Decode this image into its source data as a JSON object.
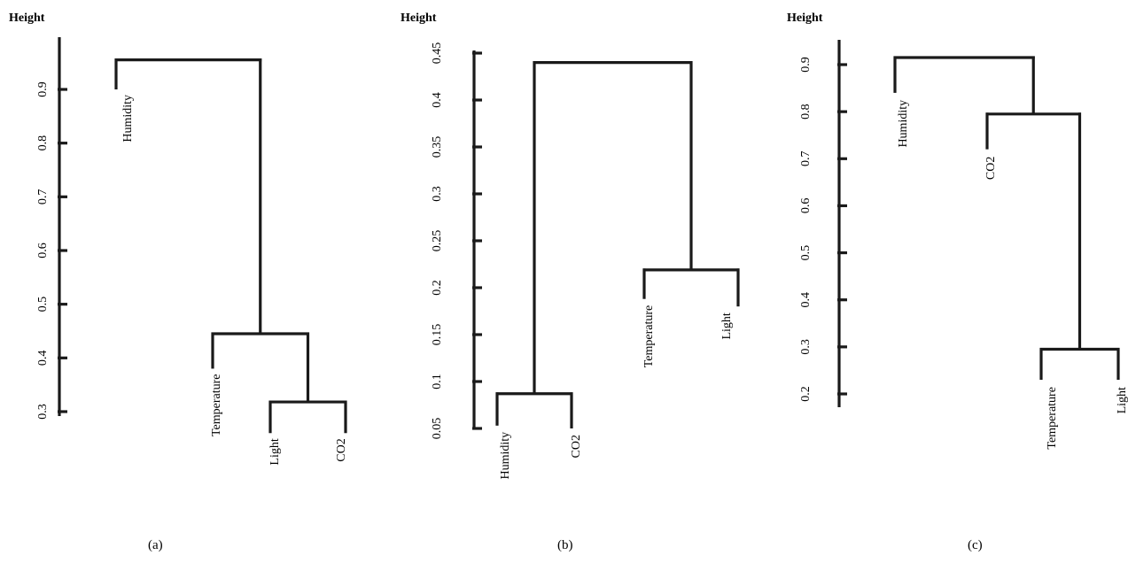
{
  "chart_data": [
    {
      "type": "dendrogram",
      "ylabel": "Height",
      "caption": "(a)",
      "ylim": [
        0.3,
        0.95
      ],
      "ticks": [
        "0.3",
        "0.4",
        "0.5",
        "0.6",
        "0.7",
        "0.8",
        "0.9"
      ],
      "tick_values": [
        0.3,
        0.4,
        0.5,
        0.6,
        0.7,
        0.8,
        0.9
      ],
      "leaves": [
        {
          "label": "Humidity",
          "bottom": 0.9
        },
        {
          "label": "Temperature",
          "bottom": 0.38
        },
        {
          "label": "Light",
          "bottom": 0.26
        },
        {
          "label": "CO2",
          "bottom": 0.26
        }
      ],
      "merges": [
        {
          "left": "leaf:2",
          "right": "leaf:3",
          "height": 0.318
        },
        {
          "left": "leaf:1",
          "right": "merge:0",
          "height": 0.445
        },
        {
          "left": "leaf:0",
          "right": "merge:1",
          "height": 0.955
        }
      ]
    },
    {
      "type": "dendrogram",
      "ylabel": "Height",
      "caption": "(b)",
      "ylim": [
        0.05,
        0.45
      ],
      "ticks": [
        "0.05",
        "0.1",
        "0.15",
        "0.2",
        "0.25",
        "0.3",
        "0.35",
        "0.4",
        "0.45"
      ],
      "tick_values": [
        0.05,
        0.1,
        0.15,
        0.2,
        0.25,
        0.3,
        0.35,
        0.4,
        0.45
      ],
      "leaves": [
        {
          "label": "Humidity",
          "bottom": 0.053
        },
        {
          "label": "CO2",
          "bottom": 0.05
        },
        {
          "label": "Temperature",
          "bottom": 0.188
        },
        {
          "label": "Light",
          "bottom": 0.18
        }
      ],
      "merges": [
        {
          "left": "leaf:0",
          "right": "leaf:1",
          "height": 0.087
        },
        {
          "left": "leaf:2",
          "right": "leaf:3",
          "height": 0.219
        },
        {
          "left": "merge:0",
          "right": "merge:1",
          "height": 0.44
        }
      ]
    },
    {
      "type": "dendrogram",
      "ylabel": "Height",
      "caption": "(c)",
      "ylim": [
        0.18,
        0.92
      ],
      "ticks": [
        "0.2",
        "0.3",
        "0.4",
        "0.5",
        "0.6",
        "0.7",
        "0.8",
        "0.9"
      ],
      "tick_values": [
        0.2,
        0.3,
        0.4,
        0.5,
        0.6,
        0.7,
        0.8,
        0.9
      ],
      "leaves": [
        {
          "label": "Humidity",
          "bottom": 0.84
        },
        {
          "label": "CO2",
          "bottom": 0.72
        },
        {
          "label": "Temperature",
          "bottom": 0.23
        },
        {
          "label": "Light",
          "bottom": 0.23
        }
      ],
      "merges": [
        {
          "left": "leaf:2",
          "right": "leaf:3",
          "height": 0.295
        },
        {
          "left": "leaf:1",
          "right": "merge:0",
          "height": 0.795
        },
        {
          "left": "leaf:0",
          "right": "merge:1",
          "height": 0.915
        }
      ]
    }
  ]
}
